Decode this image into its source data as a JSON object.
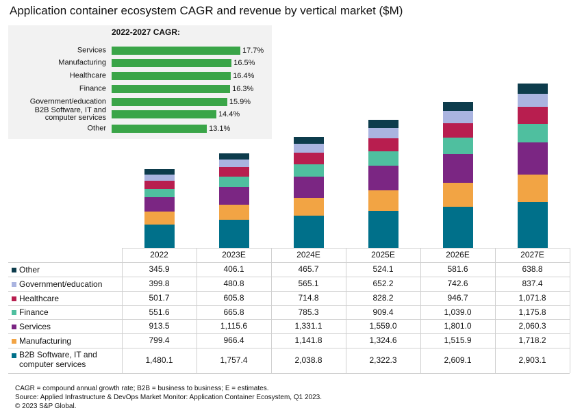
{
  "chart_data": [
    {
      "type": "hbar",
      "title": "2022-2027 CAGR:",
      "categories": [
        "Services",
        "Manufacturing",
        "Healthcare",
        "Finance",
        "Government/education",
        "B2B Software, IT and computer services",
        "Other"
      ],
      "values": [
        17.7,
        16.5,
        16.4,
        16.3,
        15.9,
        14.4,
        13.1
      ],
      "value_labels": [
        "17.7%",
        "16.5%",
        "16.4%",
        "16.3%",
        "15.9%",
        "14.4%",
        "13.1%"
      ],
      "color": "#3aa548"
    },
    {
      "type": "stacked_bar",
      "title": "Application container ecosystem CAGR and revenue by vertical market ($M)",
      "categories": [
        "2022",
        "2023E",
        "2024E",
        "2025E",
        "2026E",
        "2027E"
      ],
      "series": [
        {
          "name": "B2B Software, IT and computer services",
          "color": "#00708a",
          "values": [
            1480.1,
            1757.4,
            2038.8,
            2322.3,
            2609.1,
            2903.1
          ],
          "value_labels": [
            "1,480.1",
            "1,757.4",
            "2,038.8",
            "2,322.3",
            "2,609.1",
            "2,903.1"
          ]
        },
        {
          "name": "Manufacturing",
          "color": "#f2a444",
          "values": [
            799.4,
            966.4,
            1141.8,
            1324.6,
            1515.9,
            1718.2
          ],
          "value_labels": [
            "799.4",
            "966.4",
            "1,141.8",
            "1,324.6",
            "1,515.9",
            "1,718.2"
          ]
        },
        {
          "name": "Services",
          "color": "#7b2683",
          "values": [
            913.5,
            1115.6,
            1331.1,
            1559.0,
            1801.0,
            2060.3
          ],
          "value_labels": [
            "913.5",
            "1,115.6",
            "1,331.1",
            "1,559.0",
            "1,801.0",
            "2,060.3"
          ]
        },
        {
          "name": "Finance",
          "color": "#4fbf9f",
          "values": [
            551.6,
            665.8,
            785.3,
            909.4,
            1039.0,
            1175.8
          ],
          "value_labels": [
            "551.6",
            "665.8",
            "785.3",
            "909.4",
            "1,039.0",
            "1,175.8"
          ]
        },
        {
          "name": "Healthcare",
          "color": "#b81e4f",
          "values": [
            501.7,
            605.8,
            714.8,
            828.2,
            946.7,
            1071.8
          ],
          "value_labels": [
            "501.7",
            "605.8",
            "714.8",
            "828.2",
            "946.7",
            "1,071.8"
          ]
        },
        {
          "name": "Government/education",
          "color": "#aab4e0",
          "values": [
            399.8,
            480.8,
            565.1,
            652.2,
            742.6,
            837.4
          ],
          "value_labels": [
            "399.8",
            "480.8",
            "565.1",
            "652.2",
            "742.6",
            "837.4"
          ]
        },
        {
          "name": "Other",
          "color": "#0d3c4c",
          "values": [
            345.9,
            406.1,
            465.7,
            524.1,
            581.6,
            638.8
          ],
          "value_labels": [
            "345.9",
            "406.1",
            "465.7",
            "524.1",
            "581.6",
            "638.8"
          ]
        }
      ]
    }
  ],
  "notes": [
    "CAGR = compound annual growth rate; B2B = business to business; E = estimates.",
    "Source: Applied Infrastructure & DevOps Market Monitor: Application Container Ecosystem, Q1 2023.",
    "© 2023 S&P Global."
  ]
}
